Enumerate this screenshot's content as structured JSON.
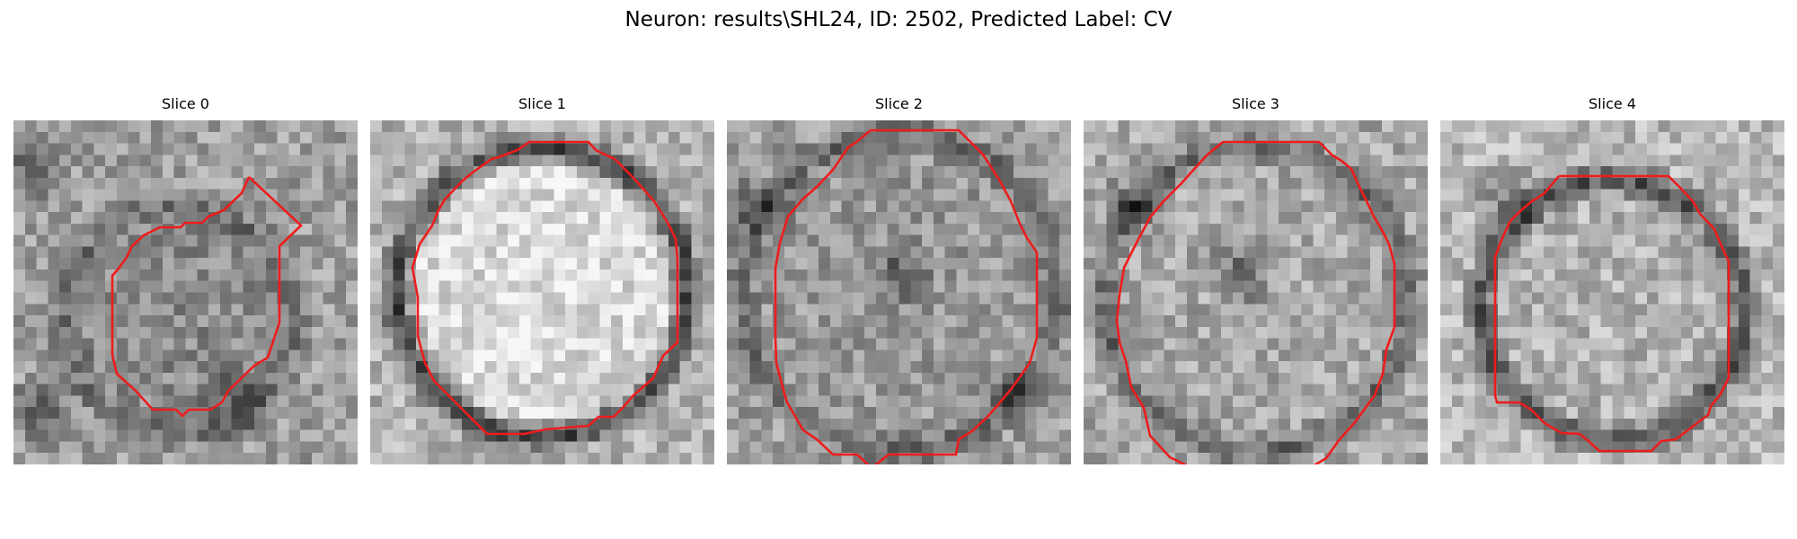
{
  "figure": {
    "title": "Neuron: results\\SHL24, ID: 2502, Predicted Label: CV"
  },
  "panels": [
    {
      "title": "Slice 0"
    },
    {
      "title": "Slice 1"
    },
    {
      "title": "Slice 2"
    },
    {
      "title": "Slice 3"
    },
    {
      "title": "Slice 4"
    }
  ],
  "colors": {
    "contour": "#ee1c1c",
    "background": "#ffffff"
  }
}
